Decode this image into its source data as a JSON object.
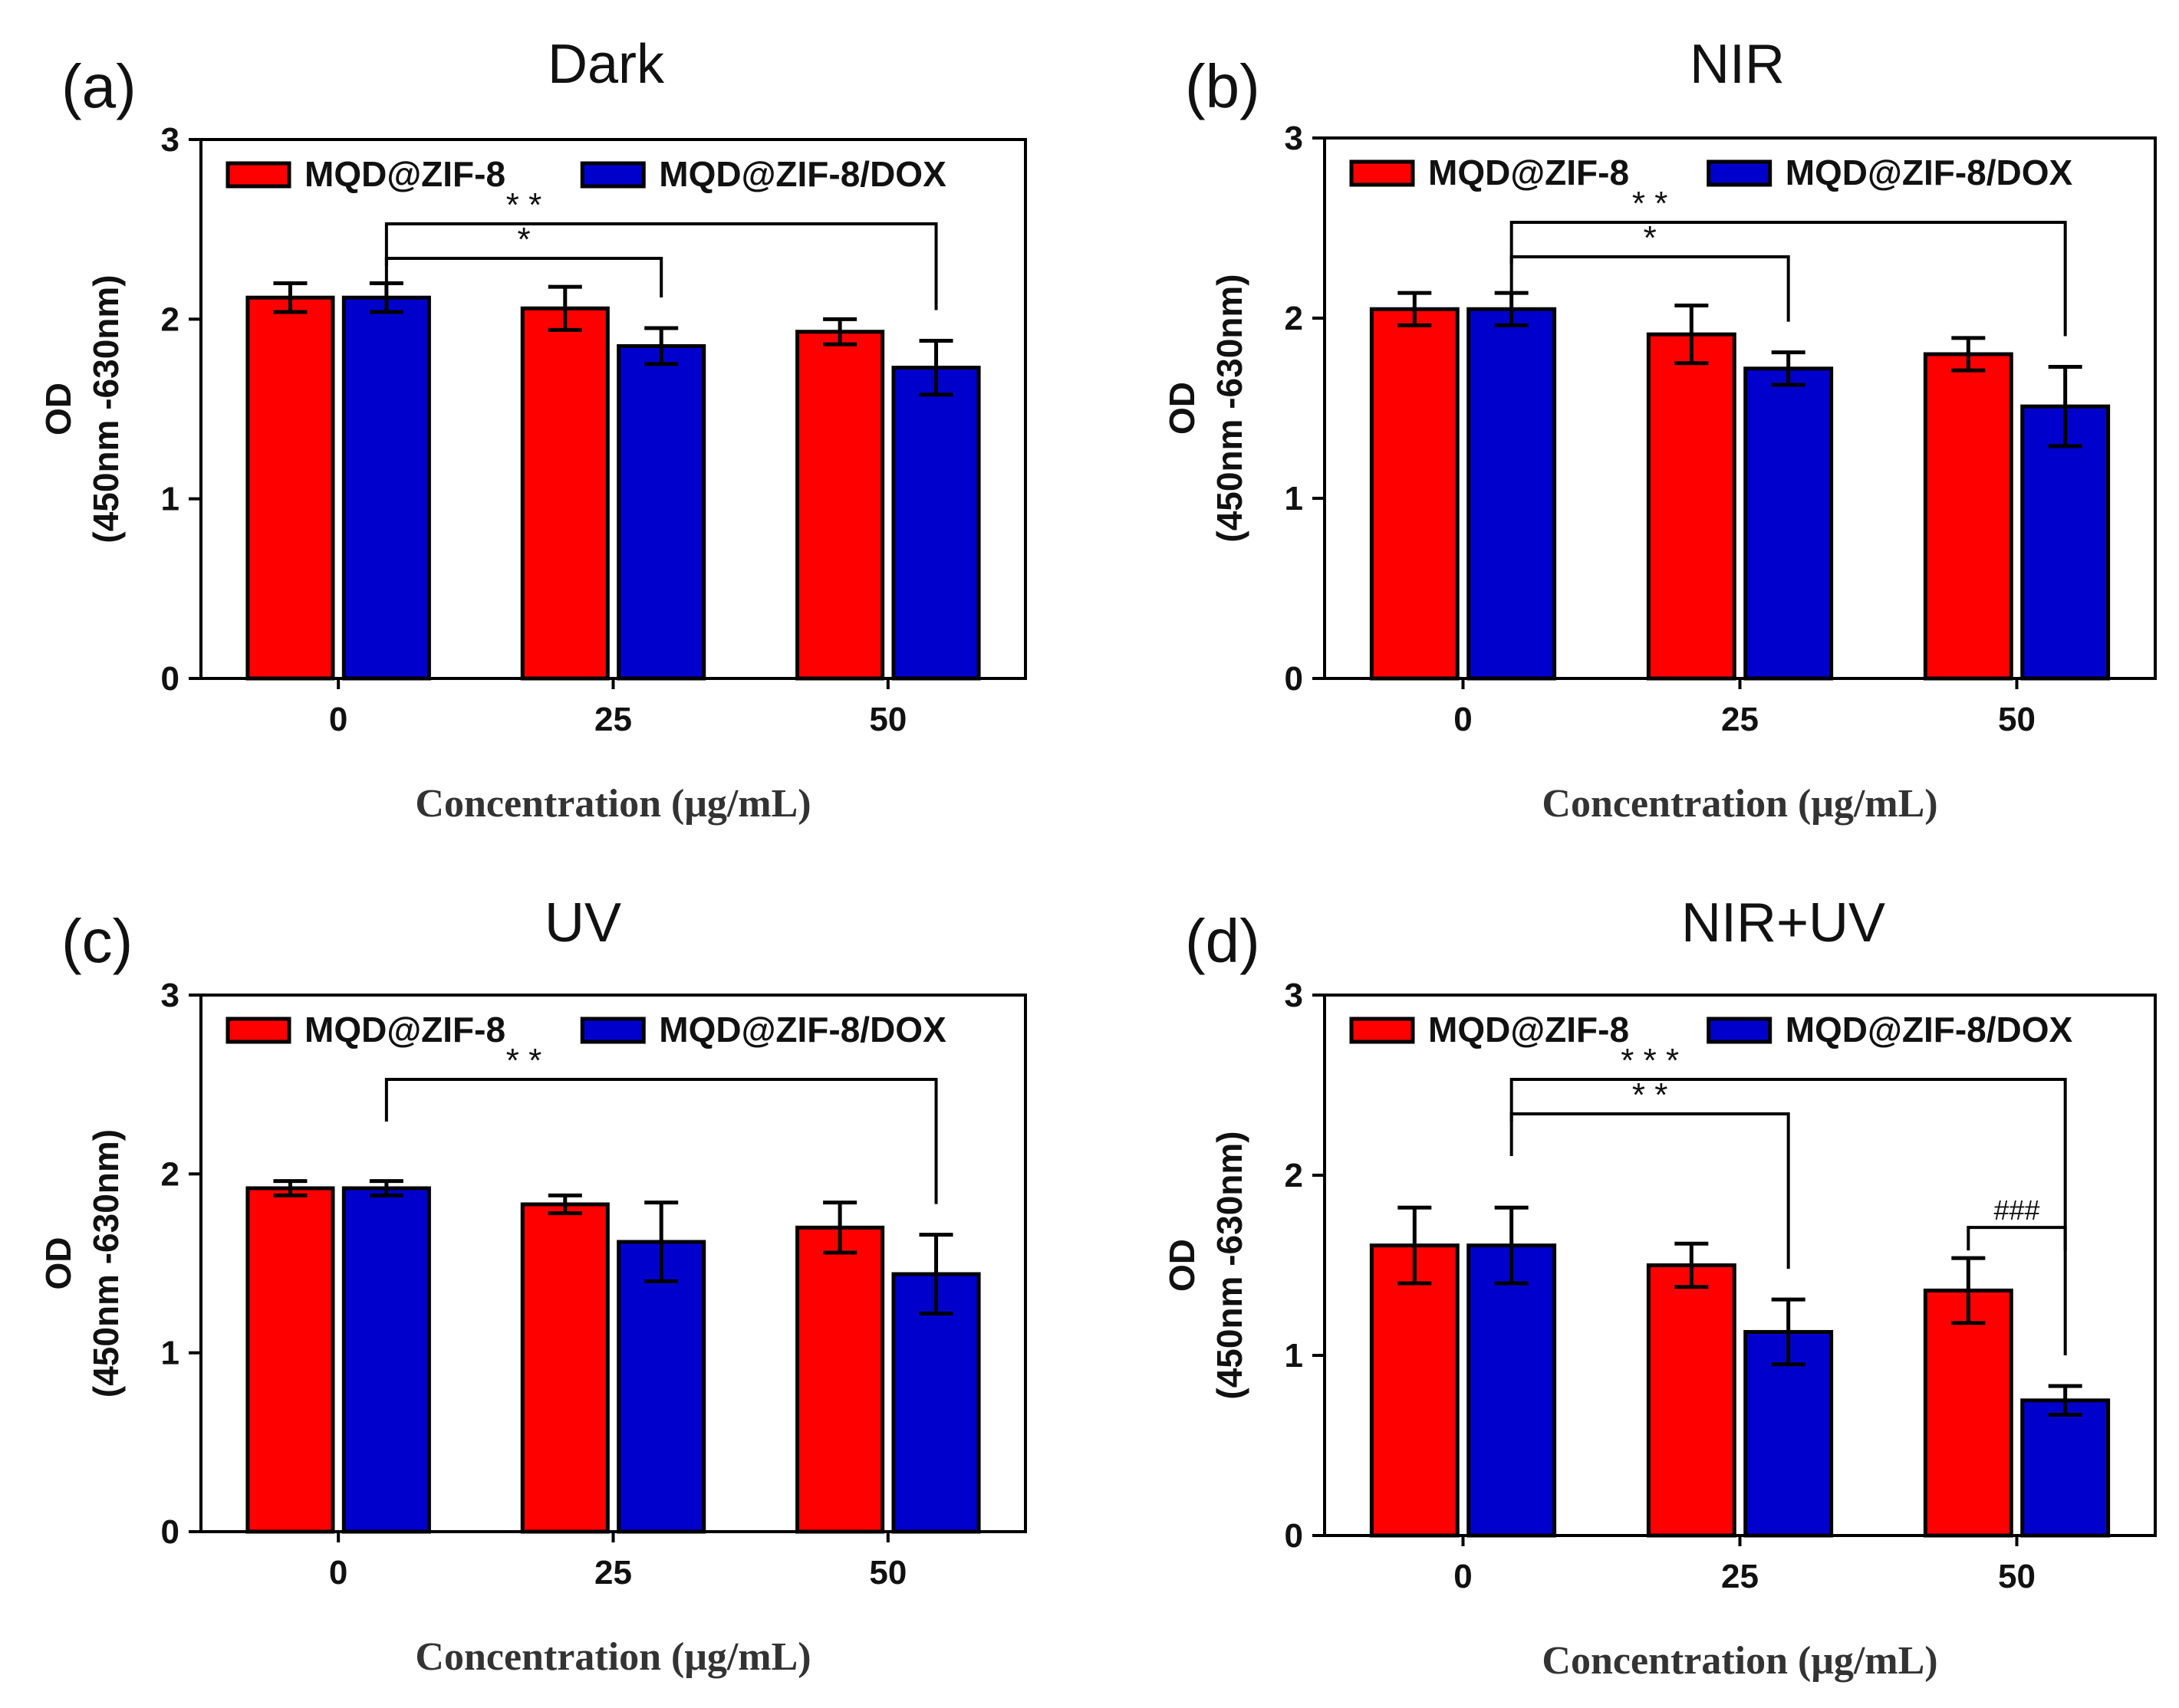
{
  "chart_data": [
    {
      "type": "bar",
      "panel_label": "(a)",
      "title": "Dark",
      "xlabel": "Concentration (μg/mL)",
      "ylabel_line1": "OD",
      "ylabel_line2": "(450nm -630nm)",
      "ylim": [
        0,
        3
      ],
      "yticks": [
        "0",
        "1",
        "2",
        "3"
      ],
      "categories": [
        "0",
        "25",
        "50"
      ],
      "series": [
        {
          "name": "MQD@ZIF-8",
          "color": "#ff0000",
          "values": [
            2.12,
            2.06,
            1.93
          ],
          "errors": [
            0.08,
            0.12,
            0.07
          ]
        },
        {
          "name": "MQD@ZIF-8/DOX",
          "color": "#0000cc",
          "values": [
            2.12,
            1.85,
            1.73
          ],
          "errors": [
            0.08,
            0.1,
            0.15
          ]
        }
      ],
      "significance": [
        {
          "from": [
            0,
            1
          ],
          "to": [
            1,
            1
          ],
          "label": "*"
        },
        {
          "from": [
            0,
            1
          ],
          "to": [
            2,
            1
          ],
          "label": "* *"
        }
      ]
    },
    {
      "type": "bar",
      "panel_label": "(b)",
      "title": "NIR",
      "xlabel": "Concentration (μg/mL)",
      "ylabel_line1": "OD",
      "ylabel_line2": "(450nm -630nm)",
      "ylim": [
        0,
        3
      ],
      "yticks": [
        "0",
        "1",
        "2",
        "3"
      ],
      "categories": [
        "0",
        "25",
        "50"
      ],
      "series": [
        {
          "name": "MQD@ZIF-8",
          "color": "#ff0000",
          "values": [
            2.05,
            1.91,
            1.8
          ],
          "errors": [
            0.09,
            0.16,
            0.09
          ]
        },
        {
          "name": "MQD@ZIF-8/DOX",
          "color": "#0000cc",
          "values": [
            2.05,
            1.72,
            1.51
          ],
          "errors": [
            0.09,
            0.09,
            0.22
          ]
        }
      ],
      "significance": [
        {
          "from": [
            0,
            1
          ],
          "to": [
            1,
            1
          ],
          "label": "*"
        },
        {
          "from": [
            0,
            1
          ],
          "to": [
            2,
            1
          ],
          "label": "* *"
        }
      ]
    },
    {
      "type": "bar",
      "panel_label": "(c)",
      "title": "UV",
      "xlabel": "Concentration (μg/mL)",
      "ylabel_line1": "OD",
      "ylabel_line2": "(450nm -630nm)",
      "ylim": [
        0,
        3
      ],
      "yticks": [
        "0",
        "1",
        "2",
        "3"
      ],
      "categories": [
        "0",
        "25",
        "50"
      ],
      "series": [
        {
          "name": "MQD@ZIF-8",
          "color": "#ff0000",
          "values": [
            1.92,
            1.83,
            1.7
          ],
          "errors": [
            0.04,
            0.05,
            0.14
          ]
        },
        {
          "name": "MQD@ZIF-8/DOX",
          "color": "#0000cc",
          "values": [
            1.92,
            1.62,
            1.44
          ],
          "errors": [
            0.04,
            0.22,
            0.22
          ]
        }
      ],
      "significance": [
        {
          "from": [
            0,
            1
          ],
          "to": [
            2,
            1
          ],
          "label": "* *"
        }
      ]
    },
    {
      "type": "bar",
      "panel_label": "(d)",
      "title": "NIR+UV",
      "xlabel": "Concentration (μg/mL)",
      "ylabel_line1": "OD",
      "ylabel_line2": "(450nm -630nm)",
      "ylim": [
        0,
        3
      ],
      "yticks": [
        "0",
        "1",
        "2",
        "3"
      ],
      "categories": [
        "0",
        "25",
        "50"
      ],
      "series": [
        {
          "name": "MQD@ZIF-8",
          "color": "#ff0000",
          "values": [
            1.61,
            1.5,
            1.36
          ],
          "errors": [
            0.21,
            0.12,
            0.18
          ]
        },
        {
          "name": "MQD@ZIF-8/DOX",
          "color": "#0000cc",
          "values": [
            1.61,
            1.13,
            0.75
          ],
          "errors": [
            0.21,
            0.18,
            0.08
          ]
        }
      ],
      "significance": [
        {
          "from": [
            0,
            1
          ],
          "to": [
            1,
            1
          ],
          "label": "* *"
        },
        {
          "from": [
            0,
            1
          ],
          "to": [
            2,
            1
          ],
          "label": "* * *"
        },
        {
          "from": [
            2,
            0
          ],
          "to": [
            2,
            1
          ],
          "label": "###"
        }
      ]
    }
  ]
}
